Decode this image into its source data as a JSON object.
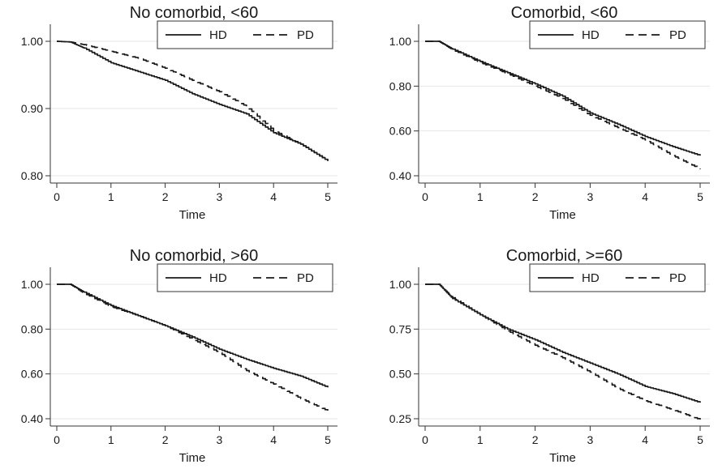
{
  "chart_data": [
    {
      "type": "line",
      "title": "No comorbid, <60",
      "xlabel": "Time",
      "ylabel": "",
      "xlim": [
        0,
        5
      ],
      "ylim": [
        0.8,
        1.0
      ],
      "xticks": [
        "0",
        "1",
        "2",
        "3",
        "4",
        "5"
      ],
      "yticks": [
        "1.00",
        "0.90",
        "0.80"
      ],
      "grid": true,
      "legend": "top-right",
      "series": [
        {
          "name": "HD",
          "dash": "solid",
          "x": [
            0,
            0.25,
            0.5,
            1.0,
            1.5,
            2.0,
            2.5,
            3.0,
            3.5,
            4.0,
            4.5,
            5.0
          ],
          "y": [
            1.0,
            0.999,
            0.99,
            0.968,
            0.955,
            0.942,
            0.922,
            0.906,
            0.892,
            0.864,
            0.847,
            0.822
          ]
        },
        {
          "name": "PD",
          "dash": "dashed",
          "x": [
            0,
            0.25,
            0.5,
            1.0,
            1.5,
            2.0,
            2.5,
            3.0,
            3.5,
            4.0,
            4.5,
            5.0
          ],
          "y": [
            1.0,
            0.999,
            0.995,
            0.985,
            0.975,
            0.96,
            0.942,
            0.925,
            0.903,
            0.867,
            0.847,
            0.822
          ]
        }
      ]
    },
    {
      "type": "line",
      "title": "Comorbid, <60",
      "xlabel": "Time",
      "ylabel": "",
      "xlim": [
        0,
        5
      ],
      "ylim": [
        0.4,
        1.0
      ],
      "xticks": [
        "0",
        "1",
        "2",
        "3",
        "4",
        "5"
      ],
      "yticks": [
        "1.00",
        "0.80",
        "0.60",
        "0.40"
      ],
      "grid": true,
      "legend": "top-right",
      "series": [
        {
          "name": "HD",
          "dash": "solid",
          "x": [
            0,
            0.25,
            0.5,
            1.0,
            1.5,
            2.0,
            2.5,
            3.0,
            3.5,
            4.0,
            4.5,
            5.0
          ],
          "y": [
            1.0,
            1.0,
            0.965,
            0.91,
            0.86,
            0.81,
            0.755,
            0.68,
            0.63,
            0.575,
            0.53,
            0.49
          ]
        },
        {
          "name": "PD",
          "dash": "dashed",
          "x": [
            0,
            0.25,
            0.5,
            1.0,
            1.5,
            2.0,
            2.5,
            3.0,
            3.5,
            4.0,
            4.5,
            5.0
          ],
          "y": [
            1.0,
            1.0,
            0.962,
            0.905,
            0.855,
            0.8,
            0.745,
            0.67,
            0.615,
            0.56,
            0.49,
            0.43
          ]
        }
      ]
    },
    {
      "type": "line",
      "title": "No comorbid, >60",
      "xlabel": "Time",
      "ylabel": "",
      "xlim": [
        0,
        5
      ],
      "ylim": [
        0.4,
        1.0
      ],
      "xticks": [
        "0",
        "1",
        "2",
        "3",
        "4",
        "5"
      ],
      "yticks": [
        "1.00",
        "0.80",
        "0.60",
        "0.40"
      ],
      "grid": true,
      "legend": "top-right",
      "series": [
        {
          "name": "HD",
          "dash": "solid",
          "x": [
            0,
            0.25,
            0.5,
            1.0,
            1.5,
            2.0,
            2.5,
            3.0,
            3.5,
            4.0,
            4.5,
            5.0
          ],
          "y": [
            1.0,
            1.0,
            0.965,
            0.905,
            0.86,
            0.815,
            0.765,
            0.71,
            0.665,
            0.625,
            0.59,
            0.54
          ]
        },
        {
          "name": "PD",
          "dash": "dashed",
          "x": [
            0,
            0.25,
            0.5,
            1.0,
            1.5,
            2.0,
            2.5,
            3.0,
            3.5,
            4.0,
            4.5,
            5.0
          ],
          "y": [
            1.0,
            1.0,
            0.96,
            0.9,
            0.86,
            0.815,
            0.755,
            0.695,
            0.615,
            0.555,
            0.49,
            0.435
          ]
        }
      ]
    },
    {
      "type": "line",
      "title": "Comorbid, >=60",
      "xlabel": "Time",
      "ylabel": "",
      "xlim": [
        0,
        5
      ],
      "ylim": [
        0.25,
        1.0
      ],
      "xticks": [
        "0",
        "1",
        "2",
        "3",
        "4",
        "5"
      ],
      "yticks": [
        "1.00",
        "0.75",
        "0.50",
        "0.25"
      ],
      "grid": true,
      "legend": "top-right",
      "series": [
        {
          "name": "HD",
          "dash": "solid",
          "x": [
            0,
            0.25,
            0.5,
            1.0,
            1.5,
            2.0,
            2.5,
            3.0,
            3.5,
            4.0,
            4.5,
            5.0
          ],
          "y": [
            1.0,
            1.0,
            0.92,
            0.83,
            0.75,
            0.69,
            0.62,
            0.56,
            0.5,
            0.43,
            0.39,
            0.34
          ]
        },
        {
          "name": "PD",
          "dash": "dashed",
          "x": [
            0,
            0.25,
            0.5,
            1.0,
            1.5,
            2.0,
            2.5,
            3.0,
            3.5,
            4.0,
            4.5,
            5.0
          ],
          "y": [
            1.0,
            1.0,
            0.925,
            0.83,
            0.74,
            0.66,
            0.59,
            0.51,
            0.42,
            0.35,
            0.3,
            0.245
          ]
        }
      ]
    }
  ]
}
